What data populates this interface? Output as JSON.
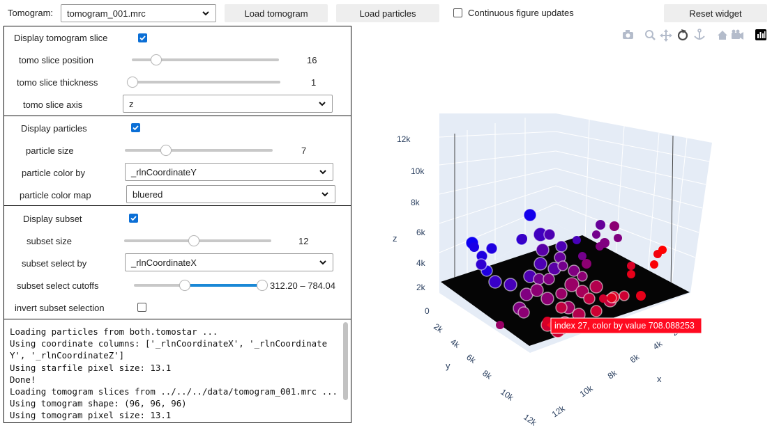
{
  "topbar": {
    "tomogram_label": "Tomogram:",
    "tomogram_value": "tomogram_001.mrc",
    "load_tomogram": "Load tomogram",
    "load_particles": "Load particles",
    "continuous_label": "Continuous figure updates",
    "continuous_checked": false,
    "reset": "Reset widget"
  },
  "tomo_panel": {
    "display_label": "Display tomogram slice",
    "display_checked": true,
    "slice_position_label": "tomo slice position",
    "slice_position_value": "16",
    "slice_position_fraction": 0.17,
    "slice_thickness_label": "tomo slice thickness",
    "slice_thickness_value": "1",
    "slice_thickness_fraction": 0.0,
    "slice_axis_label": "tomo slice axis",
    "slice_axis_value": "z"
  },
  "particle_panel": {
    "display_label": "Display particles",
    "display_checked": true,
    "size_label": "particle size",
    "size_value": "7",
    "size_fraction": 0.28,
    "color_by_label": "particle color by",
    "color_by_value": "_rlnCoordinateY",
    "color_map_label": "particle color map",
    "color_map_value": "bluered"
  },
  "subset_panel": {
    "display_label": "Display subset",
    "display_checked": true,
    "size_label": "subset size",
    "size_value": "12",
    "size_fraction": 0.47,
    "select_by_label": "subset select by",
    "select_by_value": "_rlnCoordinateX",
    "cutoffs_label": "subset select cutoffs",
    "cutoffs_value": "312.20 – 784.04",
    "cutoff_low_fraction": 0.4,
    "cutoff_high_fraction": 1.0,
    "invert_label": "invert subset selection",
    "invert_checked": false
  },
  "console_text": "Loading particles from both.tomostar ...\nUsing coordinate columns: ['_rlnCoordinateX', '_rlnCoordinateY', '_rlnCoordinateZ']\nUsing starfile pixel size: 13.1\nDone!\nLoading tomogram slices from ../../../data/tomogram_001.mrc ...\nUsing tomogram shape: (96, 96, 96)\nUsing tomogram pixel size: 13.1",
  "plot": {
    "modebar_icons": [
      "camera-icon",
      "zoom-icon",
      "pan-icon",
      "orbit-rotation-icon",
      "turntable-rotation-icon",
      "reset-camera-home-icon",
      "camera-last-save-icon",
      "plotly-logo-icon"
    ],
    "z_label": "z",
    "y_label": "y",
    "x_label": "x",
    "z_ticks": [
      "0",
      "2k",
      "4k",
      "6k",
      "8k",
      "10k",
      "12k"
    ],
    "y_ticks": [
      "2k",
      "4k",
      "6k",
      "8k",
      "10k",
      "12k"
    ],
    "x_ticks": [
      "2k",
      "4k",
      "6k",
      "8k",
      "10k",
      "12k"
    ],
    "tooltip": "index 27, color by value 708.088253",
    "colors": {
      "low": "#0000ff",
      "high": "#ff0000",
      "slice": "#000000",
      "wall": "#e5ecf6",
      "grid": "#ffffff",
      "axis_text": "#2a3f5f"
    }
  }
}
